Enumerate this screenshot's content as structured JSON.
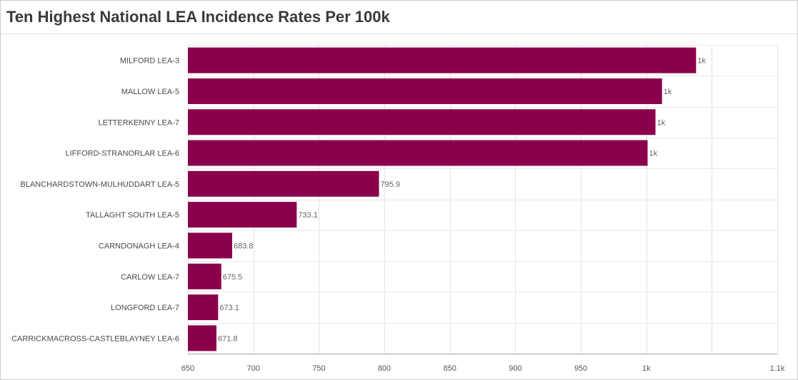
{
  "title": "Ten Highest National LEA Incidence Rates Per 100k",
  "chart_data": {
    "type": "bar",
    "orientation": "horizontal",
    "categories": [
      "MILFORD LEA-3",
      "MALLOW LEA-5",
      "LETTERKENNY LEA-7",
      "LIFFORD-STRANORLAR LEA-6",
      "BLANCHARDSTOWN-MULHUDDART LEA-5",
      "TALLAGHT SOUTH LEA-5",
      "CARNDONAGH LEA-4",
      "CARLOW LEA-7",
      "LONGFORD LEA-7",
      "CARRICKMACROSS-CASTLEBLAYNEY LEA-6"
    ],
    "values": [
      1038,
      1012,
      1007,
      1001,
      795.9,
      733.1,
      683.8,
      675.5,
      673.1,
      671.8
    ],
    "data_labels": [
      "1k",
      "1k",
      "1k",
      "1k",
      "795.9",
      "733.1",
      "683.8",
      "675.5",
      "673.1",
      "671.8"
    ],
    "xlim": [
      650,
      1100
    ],
    "xticks": [
      650,
      700,
      750,
      800,
      850,
      900,
      950,
      1000,
      1050,
      1100
    ],
    "xtick_labels": [
      "650",
      "700",
      "750",
      "800",
      "850",
      "900",
      "950",
      "1k",
      "",
      "1.1k"
    ],
    "bar_color": "#8b004b",
    "grid": true,
    "xlabel": "",
    "ylabel": ""
  }
}
